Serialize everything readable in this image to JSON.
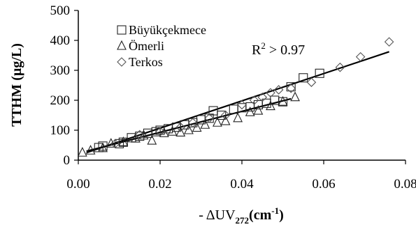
{
  "chart_data": {
    "type": "scatter",
    "xlabel": "- ΔUV",
    "xlabel_sub": "272",
    "xlabel_unit": "(cm",
    "xlabel_unit_sup": "-1",
    "xlabel_unit_end": ")",
    "ylabel": "TTHM (µg/L)",
    "xlim": [
      0,
      0.08
    ],
    "ylim": [
      0,
      500
    ],
    "x_ticks": [
      "0.00",
      "0.02",
      "0.04",
      "0.06",
      "0.08"
    ],
    "x_tick_values": [
      0,
      0.02,
      0.04,
      0.06,
      0.08
    ],
    "y_ticks": [
      "0",
      "100",
      "200",
      "300",
      "400",
      "500"
    ],
    "y_tick_values": [
      0,
      100,
      200,
      300,
      400,
      500
    ],
    "grid": false,
    "legend_position": "top-left",
    "annotation": {
      "prefix": "R",
      "sup": "2",
      "suffix": " > 0.97"
    },
    "series": [
      {
        "name": "Büyükçekmece",
        "marker": "square",
        "points": [
          [
            0.005,
            42
          ],
          [
            0.006,
            47
          ],
          [
            0.01,
            55
          ],
          [
            0.011,
            60
          ],
          [
            0.013,
            75
          ],
          [
            0.015,
            80
          ],
          [
            0.017,
            90
          ],
          [
            0.019,
            95
          ],
          [
            0.02,
            100
          ],
          [
            0.022,
            105
          ],
          [
            0.024,
            110
          ],
          [
            0.026,
            118
          ],
          [
            0.028,
            125
          ],
          [
            0.03,
            135
          ],
          [
            0.032,
            140
          ],
          [
            0.033,
            165
          ],
          [
            0.035,
            150
          ],
          [
            0.038,
            170
          ],
          [
            0.04,
            175
          ],
          [
            0.042,
            178
          ],
          [
            0.044,
            185
          ],
          [
            0.046,
            190
          ],
          [
            0.048,
            200
          ],
          [
            0.05,
            195
          ],
          [
            0.052,
            245
          ],
          [
            0.055,
            275
          ],
          [
            0.059,
            290
          ]
        ]
      },
      {
        "name": "Ömerli",
        "marker": "triangle",
        "points": [
          [
            0.001,
            25
          ],
          [
            0.003,
            32
          ],
          [
            0.006,
            40
          ],
          [
            0.008,
            55
          ],
          [
            0.011,
            60
          ],
          [
            0.014,
            72
          ],
          [
            0.016,
            82
          ],
          [
            0.018,
            65
          ],
          [
            0.021,
            90
          ],
          [
            0.023,
            95
          ],
          [
            0.025,
            92
          ],
          [
            0.027,
            100
          ],
          [
            0.029,
            108
          ],
          [
            0.031,
            118
          ],
          [
            0.034,
            125
          ],
          [
            0.036,
            130
          ],
          [
            0.039,
            140
          ],
          [
            0.042,
            160
          ],
          [
            0.044,
            165
          ],
          [
            0.047,
            180
          ],
          [
            0.05,
            195
          ],
          [
            0.053,
            210
          ]
        ]
      },
      {
        "name": "Terkos",
        "marker": "diamond",
        "points": [
          [
            0.009,
            55
          ],
          [
            0.015,
            85
          ],
          [
            0.02,
            95
          ],
          [
            0.025,
            110
          ],
          [
            0.028,
            125
          ],
          [
            0.032,
            140
          ],
          [
            0.036,
            150
          ],
          [
            0.04,
            185
          ],
          [
            0.043,
            200
          ],
          [
            0.045,
            210
          ],
          [
            0.047,
            225
          ],
          [
            0.049,
            235
          ],
          [
            0.052,
            240
          ],
          [
            0.057,
            260
          ],
          [
            0.064,
            310
          ],
          [
            0.069,
            345
          ],
          [
            0.076,
            395
          ]
        ]
      }
    ],
    "trend_lines": [
      {
        "from": [
          0.002,
          30
        ],
        "to": [
          0.052,
          205
        ]
      },
      {
        "from": [
          0.002,
          25
        ],
        "to": [
          0.076,
          362
        ]
      }
    ]
  }
}
